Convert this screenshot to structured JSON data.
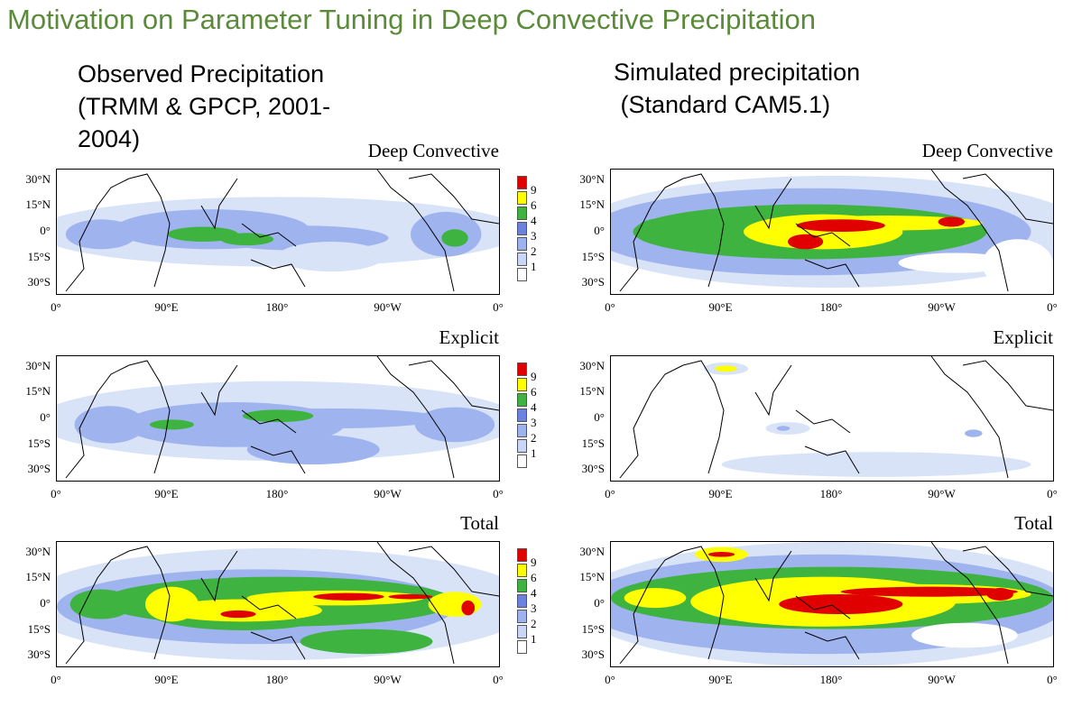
{
  "slide_title": "Motivation on Parameter Tuning in Deep Convective Precipitation",
  "columns": [
    {
      "id": "obs",
      "heading_lines": [
        "Observed Precipitation",
        "(TRMM & GPCP, 2001-",
        "2004)"
      ]
    },
    {
      "id": "sim",
      "heading_lines": [
        "Simulated precipitation",
        " (Standard CAM5.1)"
      ]
    }
  ],
  "panel_titles": [
    "Deep Convective",
    "Explicit",
    "Total"
  ],
  "lat_labels": [
    "30°N",
    "15°N",
    "0°",
    "15°S",
    "30°S"
  ],
  "lon_labels": [
    "0°",
    "90°E",
    "180°",
    "90°W",
    "0°"
  ],
  "colorbar": {
    "levels": [
      "1",
      "2",
      "3",
      "4",
      "6",
      "9"
    ],
    "colors": [
      "#ffffff",
      "#c9d6f7",
      "#9db3ef",
      "#6b83df",
      "#3fb33f",
      "#ffff00",
      "#e00000"
    ]
  },
  "palette": {
    "white": "#ffffff",
    "lightblue": "#d9e3f8",
    "blue": "#9fb3ee",
    "midblue": "#6f86e0",
    "green": "#3fb33f",
    "yellow": "#ffff00",
    "red": "#e00000",
    "title_green": "#5b8a3a"
  }
}
